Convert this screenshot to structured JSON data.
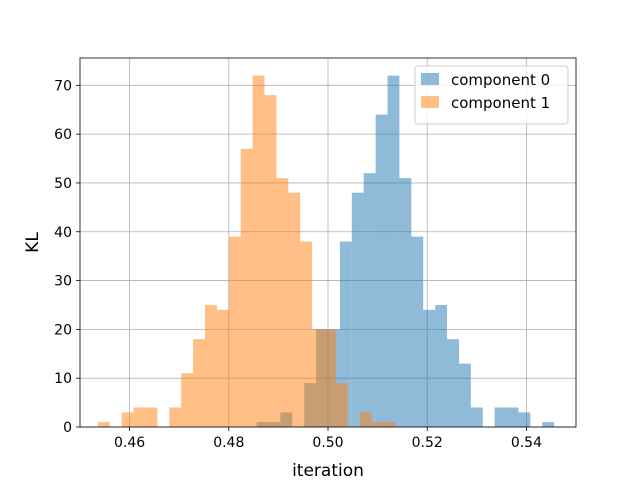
{
  "chart_data": {
    "type": "bar",
    "subtype": "overlapping-histogram",
    "title": "",
    "xlabel": "iteration",
    "ylabel": "KL",
    "xlim": [
      0.45,
      0.55
    ],
    "ylim": [
      0,
      75.6
    ],
    "xticks": [
      0.46,
      0.48,
      0.5,
      0.52,
      0.54
    ],
    "xtick_labels": [
      "0.46",
      "0.48",
      "0.50",
      "0.52",
      "0.54"
    ],
    "yticks": [
      0,
      10,
      20,
      30,
      40,
      50,
      60,
      70
    ],
    "ytick_labels": [
      "0",
      "10",
      "20",
      "30",
      "40",
      "50",
      "60",
      "70"
    ],
    "grid": true,
    "legend": "top-right",
    "series": [
      {
        "name": "component 0",
        "color": "#1f77b4",
        "alpha": 0.5,
        "bin_width": 0.0024,
        "bins": [
          {
            "x": 0.4856,
            "count": 1
          },
          {
            "x": 0.488,
            "count": 1
          },
          {
            "x": 0.4904,
            "count": 3
          },
          {
            "x": 0.4952,
            "count": 9
          },
          {
            "x": 0.4976,
            "count": 20
          },
          {
            "x": 0.5,
            "count": 20
          },
          {
            "x": 0.5024,
            "count": 38
          },
          {
            "x": 0.5048,
            "count": 48
          },
          {
            "x": 0.5072,
            "count": 52
          },
          {
            "x": 0.5096,
            "count": 64
          },
          {
            "x": 0.512,
            "count": 72
          },
          {
            "x": 0.5144,
            "count": 51
          },
          {
            "x": 0.5168,
            "count": 39
          },
          {
            "x": 0.5192,
            "count": 24
          },
          {
            "x": 0.5216,
            "count": 25
          },
          {
            "x": 0.524,
            "count": 18
          },
          {
            "x": 0.5264,
            "count": 13
          },
          {
            "x": 0.5288,
            "count": 4
          },
          {
            "x": 0.5336,
            "count": 4
          },
          {
            "x": 0.536,
            "count": 4
          },
          {
            "x": 0.5384,
            "count": 3
          },
          {
            "x": 0.5432,
            "count": 1
          }
        ]
      },
      {
        "name": "component 1",
        "color": "#ff7f0e",
        "alpha": 0.5,
        "bin_width": 0.0024,
        "bins": [
          {
            "x": 0.4536,
            "count": 1
          },
          {
            "x": 0.4584,
            "count": 3
          },
          {
            "x": 0.4608,
            "count": 4
          },
          {
            "x": 0.4632,
            "count": 4
          },
          {
            "x": 0.468,
            "count": 4
          },
          {
            "x": 0.4704,
            "count": 11
          },
          {
            "x": 0.4728,
            "count": 18
          },
          {
            "x": 0.4752,
            "count": 25
          },
          {
            "x": 0.4776,
            "count": 24
          },
          {
            "x": 0.48,
            "count": 39
          },
          {
            "x": 0.4824,
            "count": 57
          },
          {
            "x": 0.4848,
            "count": 72
          },
          {
            "x": 0.4872,
            "count": 68
          },
          {
            "x": 0.4896,
            "count": 51
          },
          {
            "x": 0.492,
            "count": 48
          },
          {
            "x": 0.4944,
            "count": 38
          },
          {
            "x": 0.4968,
            "count": 20
          },
          {
            "x": 0.4992,
            "count": 20
          },
          {
            "x": 0.5016,
            "count": 9
          },
          {
            "x": 0.5064,
            "count": 3
          },
          {
            "x": 0.5088,
            "count": 1
          },
          {
            "x": 0.5112,
            "count": 1
          }
        ]
      }
    ]
  }
}
